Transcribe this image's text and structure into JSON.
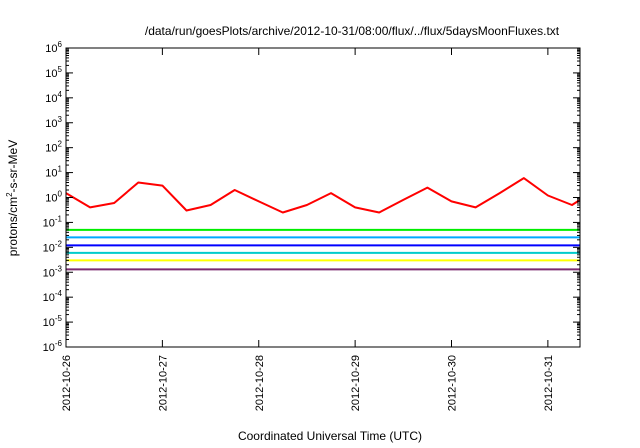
{
  "chart_data": {
    "type": "line",
    "title": "/data/run/goesPlots/archive/2012-10-31/08:00/flux/../flux/5daysMoonFluxes.txt",
    "xlabel": "Coordinated Universal Time (UTC)",
    "ylabel": {
      "prefix": "protons/cm",
      "sup": "2",
      "suffix": "-s-sr-MeV"
    },
    "yscale": "log",
    "ylim_exponents": [
      -6,
      6
    ],
    "y_ticks": [
      {
        "base": "10",
        "exp": "-6"
      },
      {
        "base": "10",
        "exp": "-5"
      },
      {
        "base": "10",
        "exp": "-4"
      },
      {
        "base": "10",
        "exp": "-3"
      },
      {
        "base": "10",
        "exp": "-2"
      },
      {
        "base": "10",
        "exp": "-1"
      },
      {
        "base": "10",
        "exp": "0"
      },
      {
        "base": "10",
        "exp": "1"
      },
      {
        "base": "10",
        "exp": "2"
      },
      {
        "base": "10",
        "exp": "3"
      },
      {
        "base": "10",
        "exp": "4"
      },
      {
        "base": "10",
        "exp": "5"
      },
      {
        "base": "10",
        "exp": "6"
      }
    ],
    "x_tick_labels": [
      "2012-10-26",
      "2012-10-27",
      "2012-10-28",
      "2012-10-29",
      "2012-10-30",
      "2012-10-31"
    ],
    "xlim": [
      "2012-10-26 00:00",
      "2012-10-31 08:00"
    ],
    "grid": false,
    "series": [
      {
        "color": "#ff0000",
        "x": [
          "2012-10-26 00:00",
          "2012-10-26 06:00",
          "2012-10-26 12:00",
          "2012-10-26 18:00",
          "2012-10-27 00:00",
          "2012-10-27 06:00",
          "2012-10-27 12:00",
          "2012-10-27 18:00",
          "2012-10-28 00:00",
          "2012-10-28 06:00",
          "2012-10-28 12:00",
          "2012-10-28 18:00",
          "2012-10-29 00:00",
          "2012-10-29 06:00",
          "2012-10-29 12:00",
          "2012-10-29 18:00",
          "2012-10-30 00:00",
          "2012-10-30 06:00",
          "2012-10-30 12:00",
          "2012-10-30 18:00",
          "2012-10-31 00:00",
          "2012-10-31 06:00",
          "2012-10-31 08:00"
        ],
        "y": [
          1.5,
          0.4,
          0.6,
          4,
          3,
          0.3,
          0.5,
          2,
          0.7,
          0.25,
          0.5,
          1.5,
          0.4,
          0.25,
          0.8,
          2.5,
          0.7,
          0.4,
          1.5,
          6,
          1.2,
          0.5,
          0.8
        ]
      },
      {
        "color": "#00ee00",
        "x": [
          "2012-10-26 00:00",
          "2012-10-27 00:00",
          "2012-10-28 00:00",
          "2012-10-29 00:00",
          "2012-10-30 00:00",
          "2012-10-31 00:00",
          "2012-10-31 08:00"
        ],
        "y": [
          0.05,
          0.05,
          0.05,
          0.05,
          0.05,
          0.05,
          0.05
        ]
      },
      {
        "color": "#00aaff",
        "x": [
          "2012-10-26 00:00",
          "2012-10-27 00:00",
          "2012-10-28 00:00",
          "2012-10-29 00:00",
          "2012-10-30 00:00",
          "2012-10-31 00:00",
          "2012-10-31 08:00"
        ],
        "y": [
          0.025,
          0.025,
          0.025,
          0.025,
          0.025,
          0.025,
          0.025
        ]
      },
      {
        "color": "#0000ff",
        "x": [
          "2012-10-26 00:00",
          "2012-10-27 00:00",
          "2012-10-28 00:00",
          "2012-10-29 00:00",
          "2012-10-30 00:00",
          "2012-10-31 00:00",
          "2012-10-31 08:00"
        ],
        "y": [
          0.012,
          0.012,
          0.012,
          0.012,
          0.012,
          0.012,
          0.012
        ]
      },
      {
        "color": "#00cccc",
        "x": [
          "2012-10-26 00:00",
          "2012-10-27 00:00",
          "2012-10-28 00:00",
          "2012-10-29 00:00",
          "2012-10-30 00:00",
          "2012-10-31 00:00",
          "2012-10-31 08:00"
        ],
        "y": [
          0.006,
          0.006,
          0.006,
          0.006,
          0.006,
          0.006,
          0.006
        ]
      },
      {
        "color": "#ffff00",
        "x": [
          "2012-10-26 00:00",
          "2012-10-27 00:00",
          "2012-10-28 00:00",
          "2012-10-29 00:00",
          "2012-10-30 00:00",
          "2012-10-31 00:00",
          "2012-10-31 08:00"
        ],
        "y": [
          0.003,
          0.003,
          0.003,
          0.003,
          0.003,
          0.003,
          0.003
        ]
      },
      {
        "color": "#7b2a6f",
        "x": [
          "2012-10-26 00:00",
          "2012-10-27 00:00",
          "2012-10-28 00:00",
          "2012-10-29 00:00",
          "2012-10-30 00:00",
          "2012-10-31 00:00",
          "2012-10-31 08:00"
        ],
        "y": [
          0.0013,
          0.0013,
          0.0013,
          0.0013,
          0.0013,
          0.0013,
          0.0013
        ]
      }
    ]
  }
}
